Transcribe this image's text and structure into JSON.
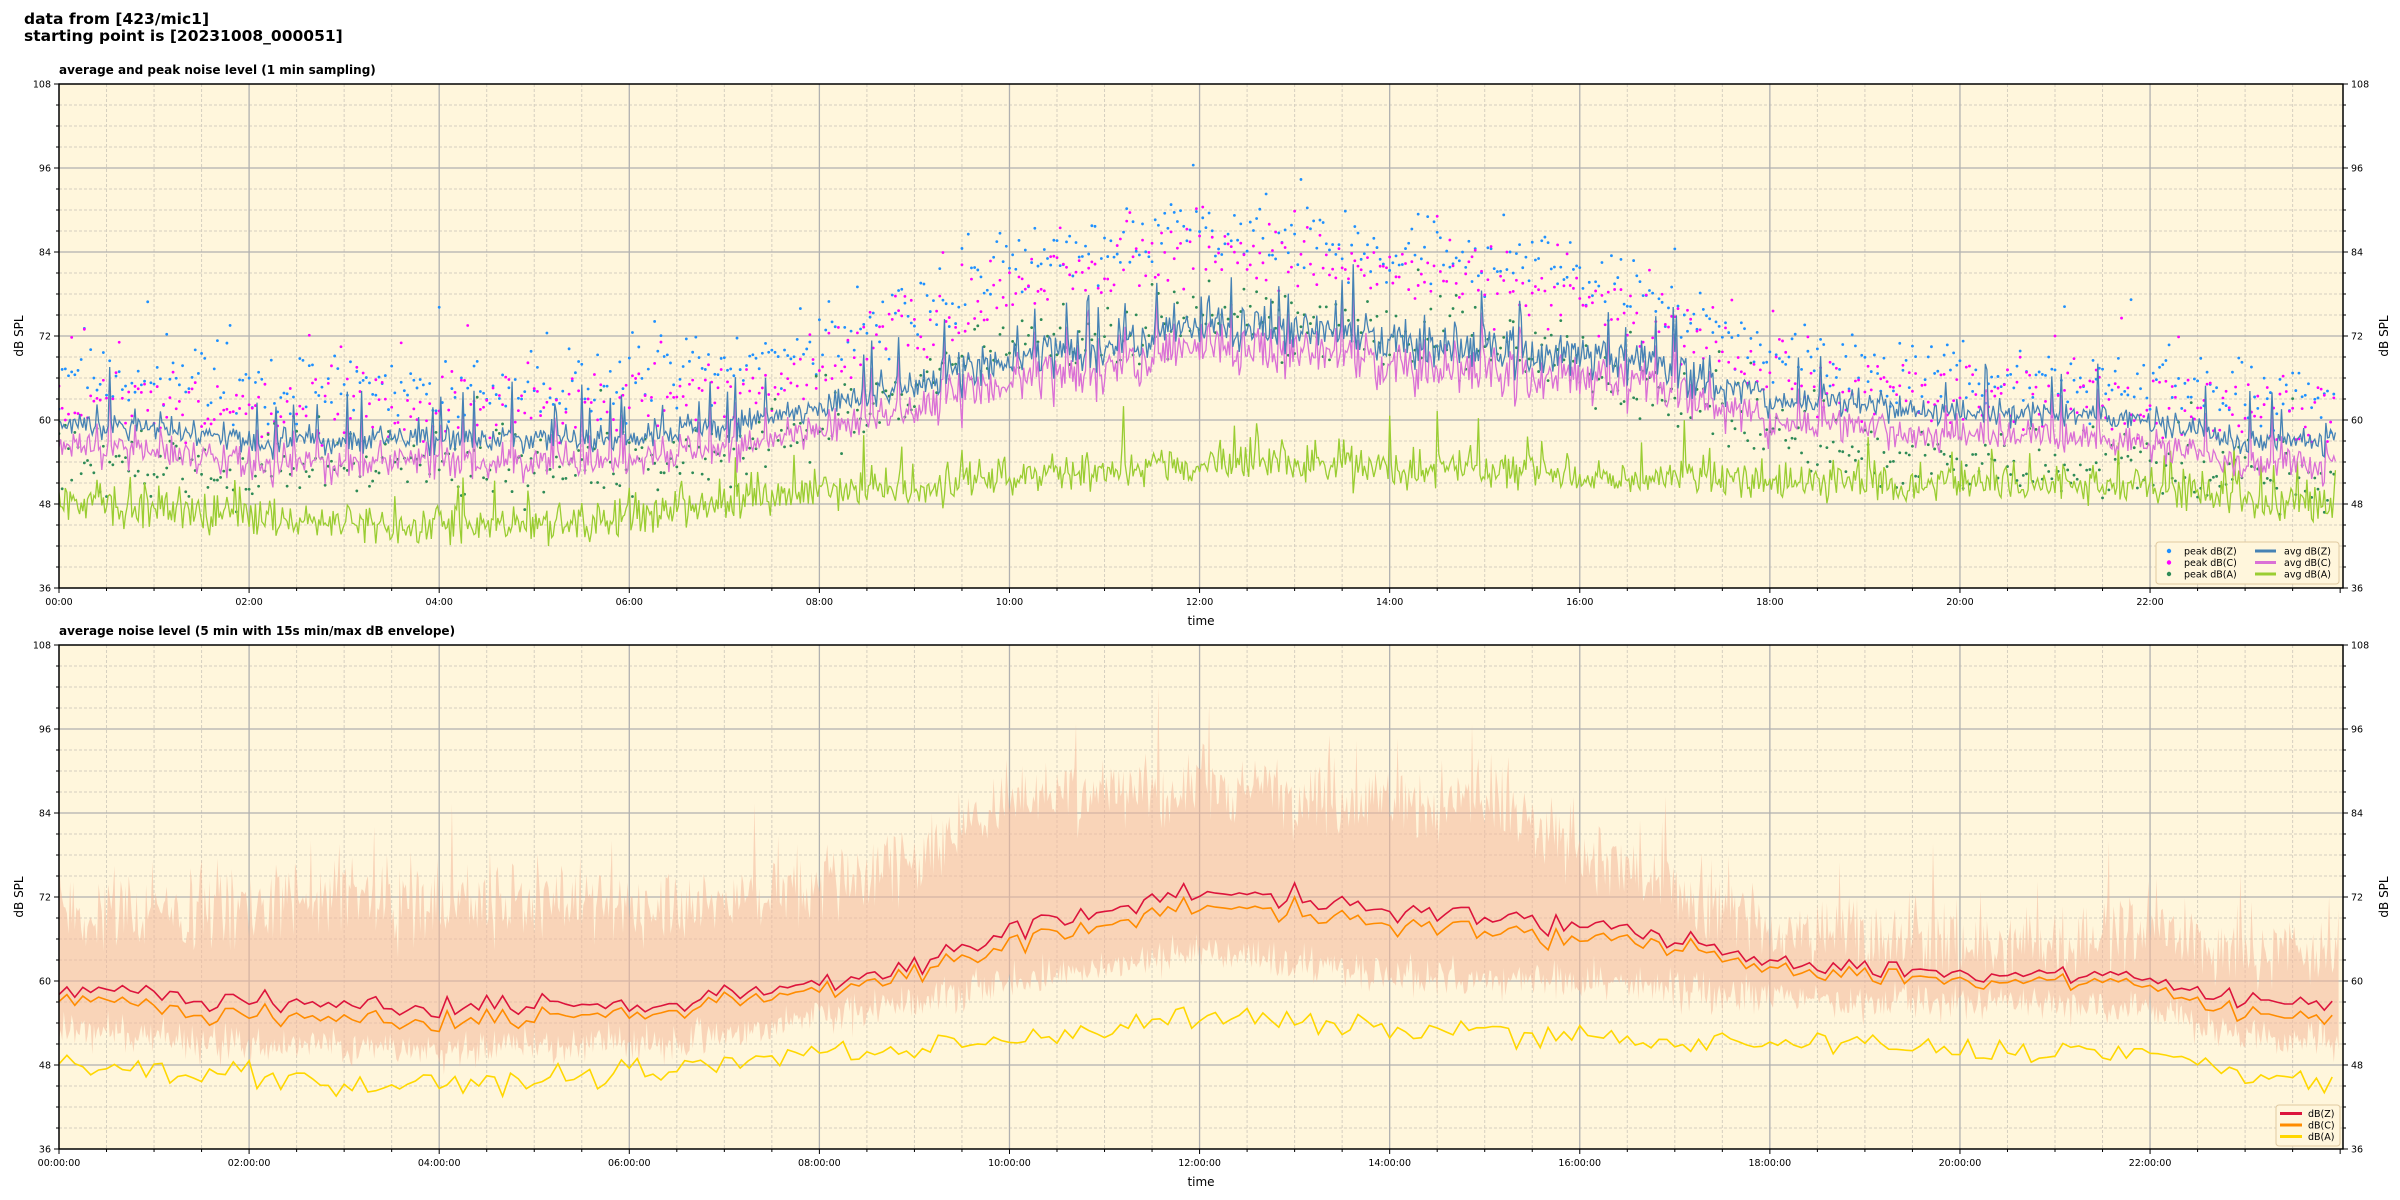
{
  "header": {
    "line1": "data from [423/mic1]",
    "line2": "starting point is [20231008_000051]"
  },
  "colors": {
    "plot_bg": "#fff6dc",
    "major_grid": "#b0b0b0",
    "minor_grid": "#d6cfc0",
    "peak_z": "#1e90ff",
    "peak_c": "#ff00ff",
    "peak_a": "#2e8b57",
    "avg_z": "#4682b4",
    "avg_c": "#da70d6",
    "avg_a": "#9acd32",
    "db_z": "#dc143c",
    "db_c": "#ff8c00",
    "db_a": "#ffd700",
    "envelope": "#f4b89a"
  },
  "chart_data": [
    {
      "type": "line+scatter",
      "title": "average and peak noise level (1 min sampling)",
      "xlabel": "time",
      "ylabel": "dB SPL",
      "ylim": [
        36,
        108
      ],
      "yticks": [
        "36",
        "48",
        "60",
        "72",
        "84",
        "96",
        "108"
      ],
      "xlim_hours": [
        0,
        24
      ],
      "xticks": [
        "00:00",
        "02:00",
        "04:00",
        "06:00",
        "08:00",
        "10:00",
        "12:00",
        "14:00",
        "16:00",
        "18:00",
        "20:00",
        "22:00"
      ],
      "grid": true,
      "legend_placement": "lower-right",
      "legend": [
        "peak dB(Z)",
        "peak dB(C)",
        "peak dB(A)",
        "avg dB(Z)",
        "avg dB(C)",
        "avg dB(A)"
      ],
      "sampling_minutes": 1,
      "hourly_profile": {
        "avg_z": [
          59,
          59,
          57,
          57,
          57,
          57,
          57,
          59,
          62,
          65,
          69,
          70,
          74,
          73,
          71,
          70,
          69,
          67,
          63,
          62,
          61,
          61,
          60,
          57
        ],
        "avg_c": [
          57,
          57,
          55,
          55,
          55,
          55,
          55,
          57,
          60,
          63,
          67,
          68,
          71,
          70,
          69,
          68,
          67,
          65,
          62,
          61,
          60,
          60,
          59,
          56
        ],
        "avg_a": [
          49,
          47,
          46,
          45,
          45,
          45,
          46,
          48,
          50,
          50,
          52,
          53,
          54,
          54,
          53,
          53,
          52,
          52,
          51,
          51,
          51,
          51,
          51,
          48
        ],
        "peak_z": [
          66,
          66,
          64,
          65,
          65,
          65,
          65,
          67,
          71,
          76,
          82,
          84,
          88,
          86,
          84,
          83,
          80,
          76,
          70,
          67,
          66,
          66,
          66,
          64
        ]
      }
    },
    {
      "type": "line+area",
      "title": "average noise level (5 min with 15s min/max dB envelope)",
      "xlabel": "time",
      "ylabel": "dB SPL",
      "ylim": [
        36,
        108
      ],
      "yticks": [
        "36",
        "48",
        "60",
        "72",
        "84",
        "96",
        "108"
      ],
      "xlim_hours": [
        0,
        24
      ],
      "xticks": [
        "00:00:00",
        "02:00:00",
        "04:00:00",
        "06:00:00",
        "08:00:00",
        "10:00:00",
        "12:00:00",
        "14:00:00",
        "16:00:00",
        "18:00:00",
        "20:00:00",
        "22:00:00"
      ],
      "grid": true,
      "legend_placement": "lower-right",
      "legend": [
        "dB(Z)",
        "dB(C)",
        "dB(A)"
      ],
      "sampling_minutes": 5,
      "hourly_profile": {
        "db_z": [
          59,
          58,
          57,
          57,
          56,
          57,
          56,
          58,
          60,
          62,
          67,
          70,
          73,
          72,
          70,
          69,
          68,
          66,
          63,
          62,
          61,
          61,
          60,
          57
        ],
        "db_c": [
          58,
          56,
          55,
          55,
          54,
          55,
          55,
          57,
          59,
          61,
          65,
          68,
          71,
          70,
          68,
          67,
          66,
          65,
          62,
          61,
          60,
          60,
          59,
          55
        ],
        "db_a": [
          49,
          47,
          47,
          45,
          45,
          46,
          47,
          48,
          50,
          50,
          52,
          53,
          55,
          54,
          53,
          53,
          52,
          51,
          51,
          51,
          50,
          50,
          50,
          46
        ],
        "env_max": [
          70,
          70,
          70,
          71,
          71,
          71,
          71,
          72,
          74,
          77,
          86,
          88,
          88,
          87,
          86,
          85,
          79,
          73,
          67,
          66,
          65,
          65,
          68,
          64
        ],
        "env_min": [
          53,
          52,
          51,
          51,
          50,
          51,
          51,
          52,
          55,
          57,
          60,
          62,
          64,
          63,
          61,
          60,
          60,
          59,
          58,
          57,
          57,
          57,
          56,
          52
        ]
      }
    }
  ]
}
